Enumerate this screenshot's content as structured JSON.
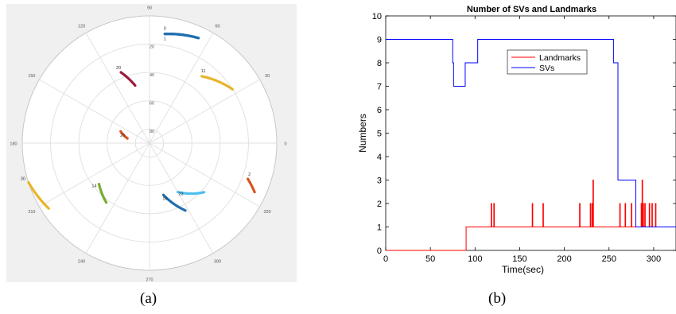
{
  "captions": [
    "(a)",
    "(b)"
  ],
  "chart_data": [
    {
      "type": "scatter",
      "subtype": "polar-skyplot",
      "title": "",
      "angle_ticks": [
        "0",
        "30",
        "60",
        "90",
        "120",
        "150",
        "180",
        "210",
        "240",
        "270",
        "300",
        "330"
      ],
      "radial_ticks": [
        "20",
        "40",
        "60",
        "80"
      ],
      "background": "#f0f0f0",
      "series": [
        {
          "label": "0",
          "color": "#1f6fb0",
          "elev": [
            12,
            8
          ],
          "az": [
            82,
            65
          ]
        },
        {
          "label": "1",
          "color": "#1f6fb0",
          "elev": [
            12,
            8
          ],
          "az": [
            82,
            65
          ]
        },
        {
          "label": "11",
          "color": "#e8b42a",
          "elev": [
            30,
            20
          ],
          "az": [
            52,
            33
          ]
        },
        {
          "label": "20",
          "color": "#9a1b3c",
          "elev": [
            36,
            48
          ],
          "az": [
            112,
            104
          ]
        },
        {
          "label": "26",
          "color": "#d9531e",
          "elev": [
            74,
            68
          ],
          "az": [
            168,
            158
          ]
        },
        {
          "label": "2",
          "color": "#d9531e",
          "elev": [
            16,
            8
          ],
          "az": [
            340,
            335
          ]
        },
        {
          "label": "30",
          "color": "#e8b42a",
          "elev": [
            0,
            5
          ],
          "az": [
            198,
            213
          ]
        },
        {
          "label": "14",
          "color": "#77ac30",
          "elev": [
            44,
            38
          ],
          "az": [
            219,
            234
          ]
        },
        {
          "label": "23",
          "color": "#4dbeee",
          "elev": [
            50,
            38
          ],
          "az": [
            300,
            318
          ]
        },
        {
          "label": "16",
          "color": "#1f6fb0",
          "elev": [
            52,
            36
          ],
          "az": [
            285,
            298
          ]
        }
      ]
    },
    {
      "type": "line",
      "title": "Number of SVs and Landmarks",
      "xlabel": "Time(sec)",
      "ylabel": "Numbers",
      "xlim": [
        0,
        325
      ],
      "ylim": [
        0,
        10
      ],
      "xticks": [
        0,
        50,
        100,
        150,
        200,
        250,
        300
      ],
      "yticks": [
        0,
        1,
        2,
        3,
        4,
        5,
        6,
        7,
        8,
        9,
        10
      ],
      "legend_position": "top-center",
      "series": [
        {
          "name": "Landmarks",
          "color": "#ff0000",
          "x": [
            0,
            90,
            90,
            118,
            118,
            118.6,
            118.6,
            121,
            121,
            121.6,
            121.6,
            164,
            164,
            164.6,
            164.6,
            176,
            176,
            176.6,
            176.6,
            217,
            217,
            217.6,
            217.6,
            229,
            229,
            229.6,
            229.6,
            231,
            231,
            231.6,
            231.6,
            232,
            232,
            232.6,
            232.6,
            262,
            262,
            262.6,
            262.6,
            268,
            268,
            268.6,
            268.6,
            275,
            275,
            275.6,
            275.6,
            286,
            286,
            286.6,
            286.6,
            287,
            287,
            287.6,
            287.6,
            288,
            288,
            288.6,
            288.6,
            290,
            290,
            290.6,
            290.6,
            295,
            295,
            295.6,
            295.6,
            298,
            298,
            298.6,
            298.6,
            302,
            302,
            302.6,
            302.6,
            325
          ],
          "y": [
            0,
            0,
            1,
            1,
            2,
            2,
            1,
            1,
            2,
            2,
            1,
            1,
            2,
            2,
            1,
            1,
            2,
            2,
            1,
            1,
            2,
            2,
            1,
            1,
            2,
            2,
            1,
            1,
            2,
            2,
            1,
            1,
            3,
            3,
            1,
            1,
            2,
            2,
            1,
            1,
            2,
            2,
            1,
            1,
            2,
            2,
            1,
            1,
            2,
            2,
            1,
            1,
            3,
            3,
            1,
            1,
            2,
            2,
            1,
            1,
            2,
            2,
            1,
            1,
            2,
            2,
            1,
            1,
            2,
            2,
            1,
            1,
            2,
            2,
            1,
            1
          ]
        },
        {
          "name": "SVs",
          "color": "#0000ff",
          "x": [
            0,
            75,
            75,
            76,
            76,
            89,
            89,
            103,
            103,
            255,
            255,
            260,
            260,
            280,
            280,
            325
          ],
          "y": [
            9,
            9,
            8,
            8,
            7,
            7,
            8,
            8,
            9,
            9,
            8,
            8,
            3,
            3,
            1,
            1
          ]
        }
      ]
    }
  ]
}
